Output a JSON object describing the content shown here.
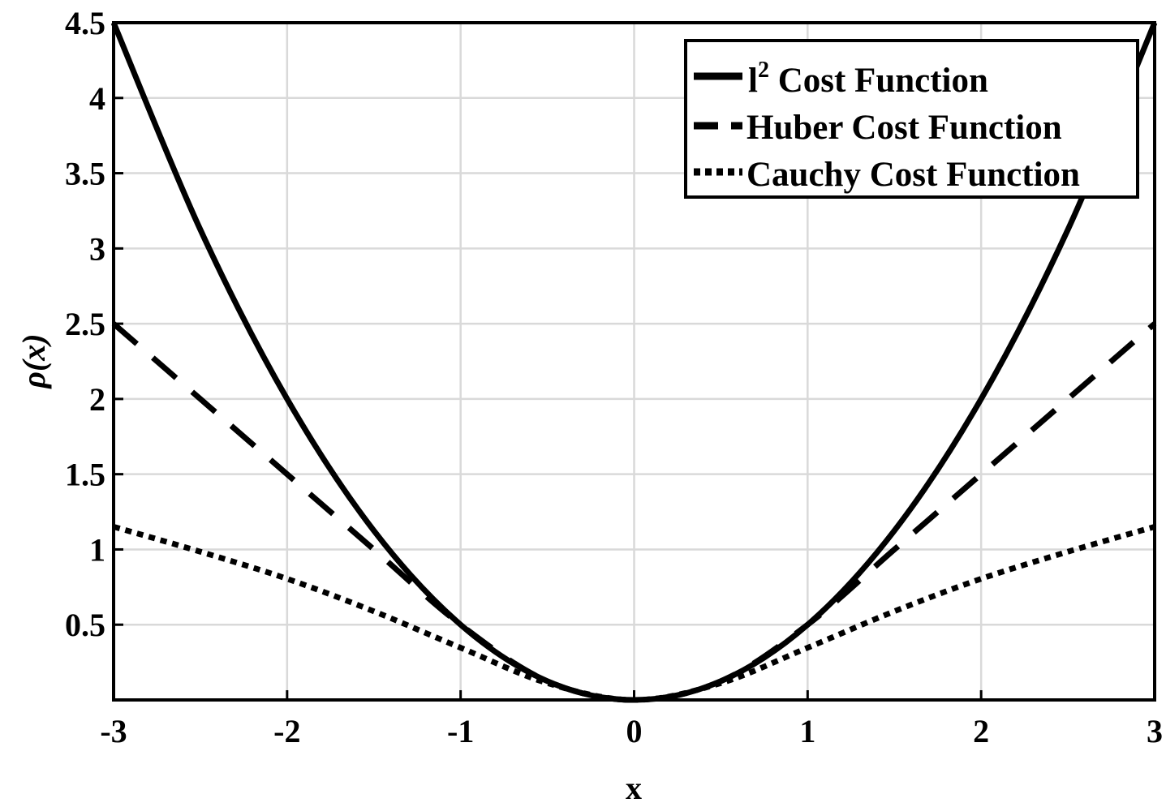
{
  "chart_data": {
    "type": "line",
    "xlabel": "x",
    "ylabel": "ρ(x)",
    "xlim": [
      -3,
      3
    ],
    "ylim": [
      0,
      4.5
    ],
    "x_ticks": [
      "-3",
      "-2",
      "-1",
      "0",
      "1",
      "2",
      "3"
    ],
    "y_ticks": [
      "0.5",
      "1",
      "1.5",
      "2",
      "2.5",
      "3",
      "3.5",
      "4",
      "4.5"
    ],
    "grid": true,
    "legend_position": "top-right",
    "x": [
      -3,
      -2.5,
      -2,
      -1.5,
      -1,
      -0.5,
      0,
      0.5,
      1,
      1.5,
      2,
      2.5,
      3
    ],
    "series": [
      {
        "name": "l",
        "name_superscript": "2",
        "name_suffix": " Cost Function",
        "style": "solid",
        "values": [
          4.5,
          3.125,
          2.0,
          1.125,
          0.5,
          0.125,
          0.0,
          0.125,
          0.5,
          1.125,
          2.0,
          3.125,
          4.5
        ]
      },
      {
        "name": "Huber Cost Function",
        "style": "dashed",
        "values": [
          2.5,
          2.0,
          1.5,
          1.0,
          0.5,
          0.125,
          0.0,
          0.125,
          0.5,
          1.0,
          1.5,
          2.0,
          2.5
        ]
      },
      {
        "name": "Cauchy Cost Function",
        "style": "dotted",
        "values": [
          1.151,
          0.985,
          0.805,
          0.589,
          0.347,
          0.112,
          0.0,
          0.112,
          0.347,
          0.589,
          0.805,
          0.985,
          1.151
        ]
      }
    ]
  }
}
